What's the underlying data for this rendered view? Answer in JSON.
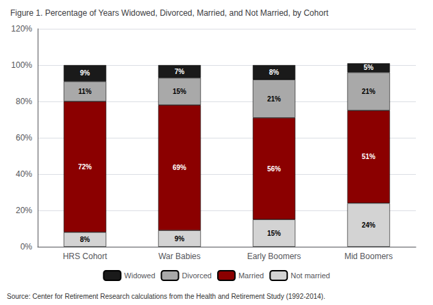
{
  "chart_data": {
    "type": "bar",
    "title": "Figure 1. Percentage of Years Widowed, Divorced, Married, and Not Married, by Cohort",
    "annotations": [
      "Source: Center for Retirement Research calculations from the Health and Retirement Study (1992-2014)."
    ],
    "categories": [
      "HRS Cohort",
      "War Babies",
      "Early Boomers",
      "Mid Boomers"
    ],
    "series": [
      {
        "name": "Not married",
        "color": "#d3d3d3",
        "values": [
          8,
          9,
          15,
          24
        ],
        "value_labels": [
          "8%",
          "9%",
          "15%",
          "24%"
        ]
      },
      {
        "name": "Married",
        "color": "#8b0000",
        "values": [
          72,
          69,
          56,
          51
        ],
        "value_labels": [
          "72%",
          "69%",
          "56%",
          "51%"
        ]
      },
      {
        "name": "Divorced",
        "color": "#a9a9a9",
        "values": [
          11,
          15,
          21,
          21
        ],
        "value_labels": [
          "11%",
          "15%",
          "21%",
          "21%"
        ]
      },
      {
        "name": "Widowed",
        "color": "#1a1a1a",
        "values": [
          9,
          7,
          8,
          5
        ],
        "value_labels": [
          "9%",
          "7%",
          "8%",
          "5%"
        ]
      }
    ],
    "ylim": [
      0,
      120
    ],
    "yticks": [
      {
        "value": 0,
        "label": "0%"
      },
      {
        "value": 20,
        "label": "20%"
      },
      {
        "value": 40,
        "label": "40%"
      },
      {
        "value": 60,
        "label": "60%"
      },
      {
        "value": 80,
        "label": "80%"
      },
      {
        "value": 100,
        "label": "100%"
      },
      {
        "value": 120,
        "label": "120%"
      }
    ],
    "stacked": true,
    "data_labels": true,
    "grid": true,
    "legend": "bottom"
  }
}
